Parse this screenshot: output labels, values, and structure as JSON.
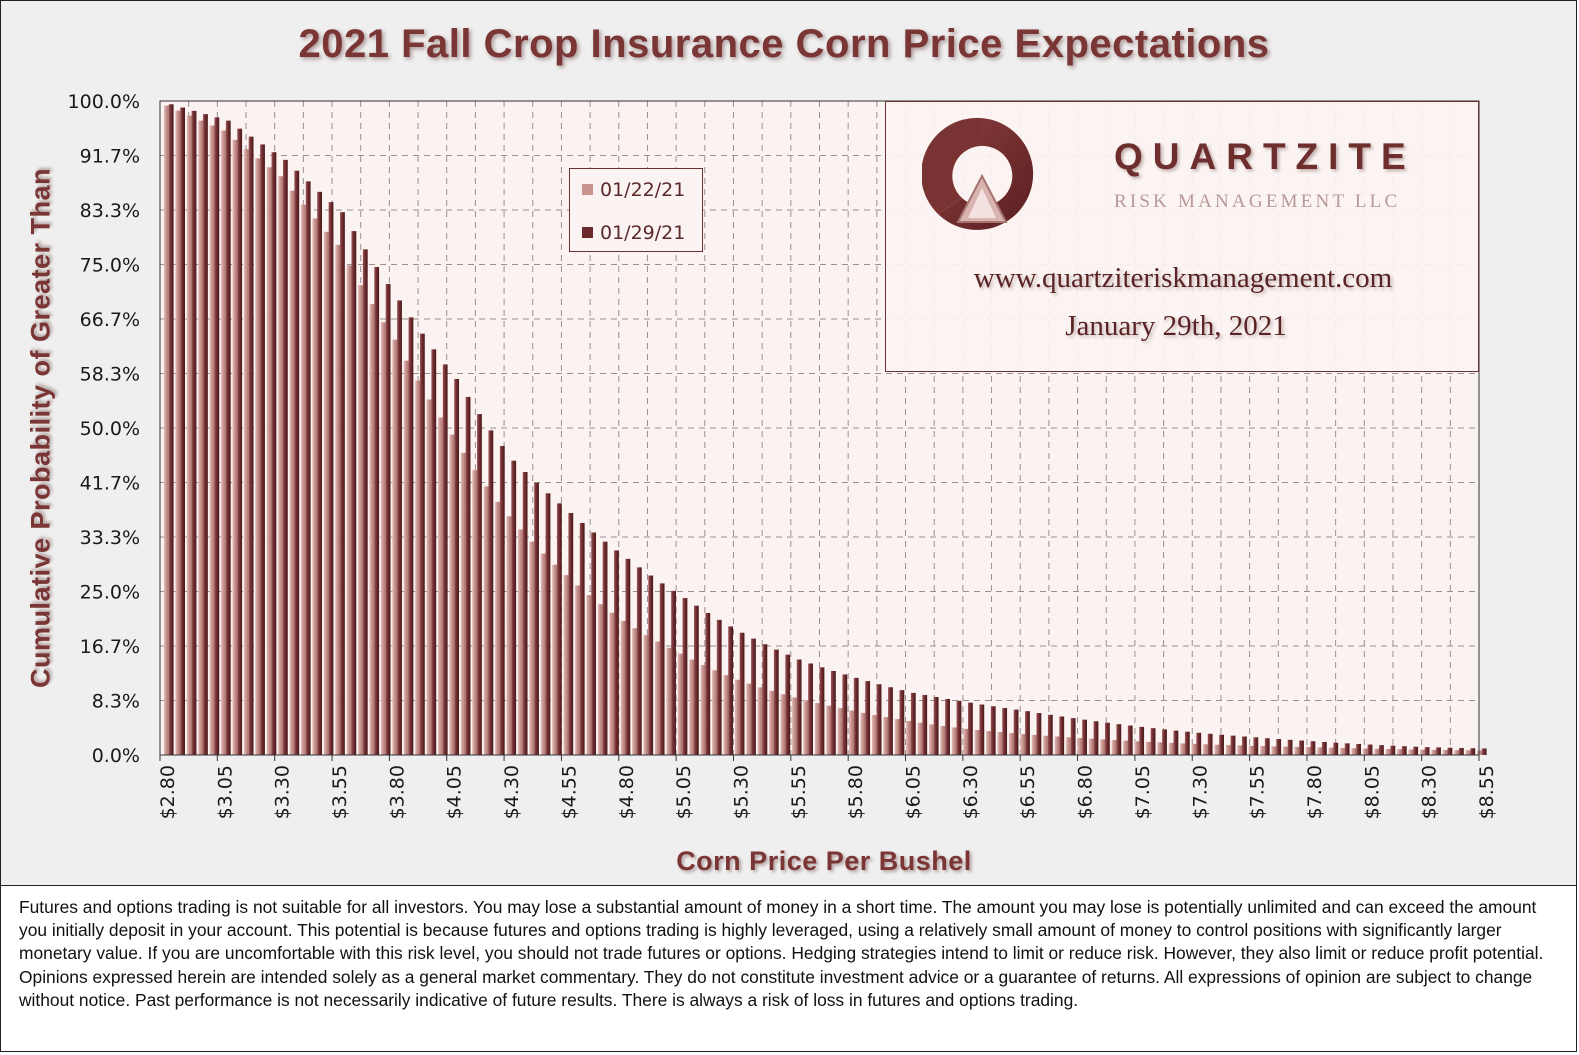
{
  "title": "2021 Fall Crop Insurance Corn Price Expectations",
  "ylabel": "Cumulative Probability of Greater Than",
  "xlabel": "Corn Price Per Bushel",
  "colors": {
    "series_0122": "#c9938e",
    "series_0129": "#6b2a2c",
    "title": "#7a3535",
    "plot_bg": "#fbf3f2",
    "frame_bg": "#f0efef"
  },
  "legend": [
    {
      "label": "01/22/21",
      "color": "#c9938e"
    },
    {
      "label": "01/29/21",
      "color": "#6b2a2c"
    }
  ],
  "logo": {
    "name": "QUARTZITE",
    "subtitle": "RISK MANAGEMENT LLC",
    "url": "www.quartziteriskmanagement.com",
    "date": "January 29th, 2021"
  },
  "chart_data": {
    "type": "bar",
    "x_start": 2.8,
    "x_step": 0.05,
    "x_end": 8.55,
    "x_tick_labels": [
      "$2.80",
      "$3.05",
      "$3.30",
      "$3.55",
      "$3.80",
      "$4.05",
      "$4.30",
      "$4.55",
      "$4.80",
      "$5.05",
      "$5.30",
      "$5.55",
      "$5.80",
      "$6.05",
      "$6.30",
      "$6.55",
      "$6.80",
      "$7.05",
      "$7.30",
      "$7.55",
      "$7.80",
      "$8.05",
      "$8.30",
      "$8.55"
    ],
    "y_tick_labels": [
      "0.0%",
      "8.3%",
      "16.7%",
      "25.0%",
      "33.3%",
      "41.7%",
      "50.0%",
      "58.3%",
      "66.7%",
      "75.0%",
      "83.3%",
      "91.7%",
      "100.0%"
    ],
    "ylim": [
      0,
      100
    ],
    "grid": true,
    "legend_position": "upper-middle",
    "series": [
      {
        "name": "01/22/21",
        "x": [
          2.8,
          3.05,
          3.3,
          3.55,
          3.8,
          4.05,
          4.3,
          4.55,
          4.8,
          5.05,
          5.3,
          5.55,
          5.8,
          6.05,
          6.3,
          6.55,
          6.8,
          7.05,
          7.3,
          7.55,
          7.8,
          8.05,
          8.3,
          8.55
        ],
        "values": [
          99.3,
          95.5,
          88.5,
          78.0,
          63.5,
          49.0,
          36.5,
          27.5,
          20.5,
          15.5,
          11.5,
          8.8,
          6.8,
          5.2,
          4.0,
          3.2,
          2.6,
          2.1,
          1.7,
          1.4,
          1.2,
          1.0,
          0.8,
          0.7
        ]
      },
      {
        "name": "01/29/21",
        "x": [
          2.8,
          3.05,
          3.3,
          3.55,
          3.8,
          4.05,
          4.3,
          4.55,
          4.8,
          5.05,
          5.3,
          5.55,
          5.8,
          6.05,
          6.3,
          6.55,
          6.8,
          7.05,
          7.3,
          7.55,
          7.8,
          8.05,
          8.3,
          8.55
        ],
        "values": [
          99.5,
          97.0,
          91.0,
          83.0,
          69.5,
          57.5,
          45.0,
          37.0,
          30.0,
          24.0,
          18.7,
          14.6,
          11.8,
          9.5,
          8.0,
          6.7,
          5.4,
          4.3,
          3.4,
          2.7,
          2.1,
          1.6,
          1.2,
          1.0
        ]
      }
    ]
  },
  "disclaimer": "Futures and options trading is not suitable for all investors. You may lose a substantial amount of money in a short time. The amount you may lose is potentially unlimited and can exceed the amount you initially deposit in your account. This potential is because futures and options trading is highly leveraged, using a relatively small amount of money to control positions with significantly larger monetary value. If you are uncomfortable with this risk level, you should not trade futures or options. Hedging strategies intend to limit or reduce risk. However, they also limit or reduce profit potential. Opinions expressed herein are intended solely as a general market commentary. They do not constitute investment advice or a guarantee of returns. All expressions of opinion are subject to change without notice. Past performance is not necessarily indicative of future results. There is always a risk of loss in futures and options trading."
}
